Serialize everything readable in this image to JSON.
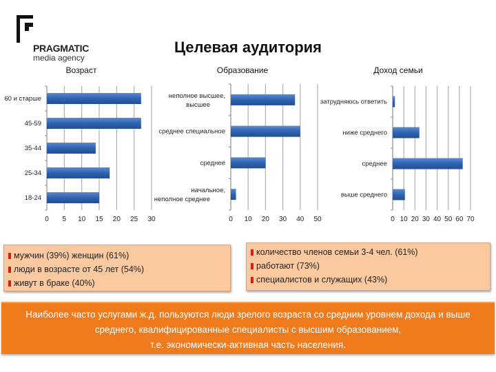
{
  "logo": {
    "name": "PRAGMATIC",
    "subtitle": "media agency"
  },
  "title": "Целевая аудитория",
  "colors": {
    "bar": "#2f63b0",
    "box": "#fbc9a0",
    "banner": "#ef7b1c",
    "bullet": "#d0201a"
  },
  "chart_data": [
    {
      "type": "bar",
      "orientation": "horizontal",
      "title": "Возраст",
      "categories": [
        "60 и старше",
        "45-59",
        "35-44",
        "25-34",
        "18-24"
      ],
      "values": [
        27,
        27,
        14,
        18,
        15
      ],
      "xlim": [
        0,
        30
      ],
      "xticks": [
        "0",
        "5",
        "10",
        "15",
        "20",
        "25",
        "30"
      ],
      "grid": true
    },
    {
      "type": "bar",
      "orientation": "horizontal",
      "title": "Образование",
      "categories": [
        "неполное высшее, высшее",
        "среднее специальное",
        "среднее",
        "начальное, неполное среднее"
      ],
      "values": [
        37,
        40,
        20,
        3
      ],
      "xlim": [
        0,
        50
      ],
      "xticks": [
        "0",
        "10",
        "20",
        "30",
        "40",
        "50"
      ],
      "grid": true
    },
    {
      "type": "bar",
      "orientation": "horizontal",
      "title": "Доход семьи",
      "categories": [
        "затрудняюсь ответить",
        "ниже среднего",
        "среднее",
        "выше среднего"
      ],
      "values": [
        2,
        24,
        63,
        11
      ],
      "xlim": [
        0,
        70
      ],
      "xticks": [
        "0",
        "10",
        "20",
        "30",
        "40",
        "50",
        "60",
        "70"
      ],
      "grid": true
    }
  ],
  "left_box": [
    "мужчин (39%) женщин (61%)",
    "люди в возрасте от 45 лет (54%)",
    "живут в браке (40%)"
  ],
  "right_box": [
    "количество членов семьи 3-4 чел. (61%)",
    "работают (73%)",
    "специалистов и служащих (43%)"
  ],
  "banner": [
    "Наиболее часто услугами ж.д. пользуются люди зрелого возраста со средним уровнем дохода и выше",
    "среднего, квалифицированные специалисты с высшим образованием,",
    "т.е. экономически-активная часть населения."
  ]
}
